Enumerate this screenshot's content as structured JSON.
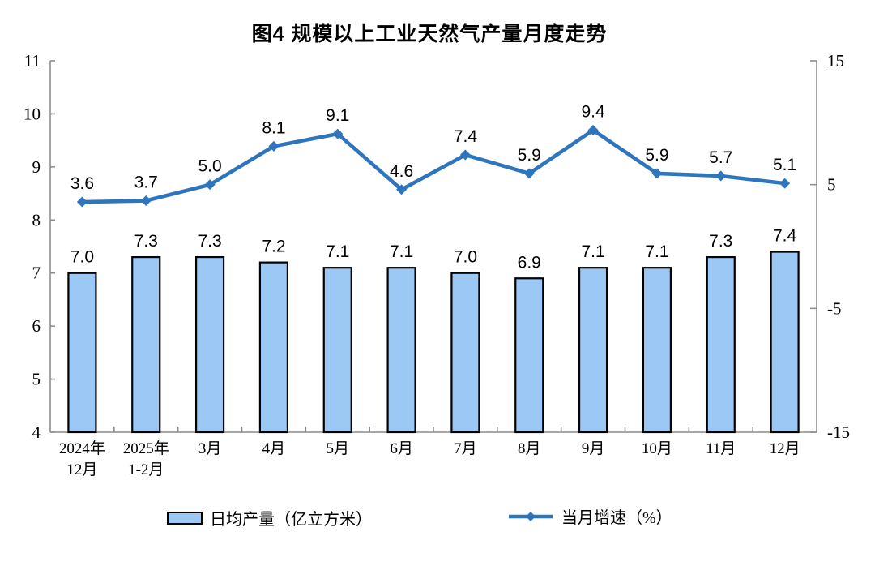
{
  "chart_data": {
    "type": "bar",
    "subtype": "bar+line combo, dual axis",
    "title": "图4 规模以上工业天然气产量月度走势",
    "categories": [
      "2024年12月",
      "2025年1-2月",
      "3月",
      "4月",
      "5月",
      "6月",
      "7月",
      "8月",
      "9月",
      "10月",
      "11月",
      "12月"
    ],
    "category_lines": [
      [
        "2024年",
        "12月"
      ],
      [
        "2025年",
        "1-2月"
      ],
      [
        "3月"
      ],
      [
        "4月"
      ],
      [
        "5月"
      ],
      [
        "6月"
      ],
      [
        "7月"
      ],
      [
        "8月"
      ],
      [
        "9月"
      ],
      [
        "10月"
      ],
      [
        "11月"
      ],
      [
        "12月"
      ]
    ],
    "series": [
      {
        "name": "日均产量（亿立方米）",
        "type": "bar",
        "axis": "left",
        "values": [
          7.0,
          7.3,
          7.3,
          7.2,
          7.1,
          7.1,
          7.0,
          6.9,
          7.1,
          7.1,
          7.3,
          7.4
        ]
      },
      {
        "name": "当月增速（%）",
        "type": "line",
        "axis": "right",
        "values": [
          3.6,
          3.7,
          5.0,
          8.1,
          9.1,
          4.6,
          7.4,
          5.9,
          9.4,
          5.9,
          5.7,
          5.1
        ]
      }
    ],
    "left_axis": {
      "min": 4,
      "max": 11,
      "tick_values": [
        4,
        5,
        6,
        7,
        8,
        9,
        10,
        11
      ]
    },
    "right_axis": {
      "min": -15,
      "max": 15,
      "tick_values": [
        -15,
        -5,
        5,
        15
      ]
    },
    "grid": false,
    "legend_position": "bottom",
    "data_labels": true,
    "colors": {
      "bar_fill": "#9BC8F5",
      "bar_border": "#000000",
      "line": "#2E75BE",
      "axis": "#8C8C8C",
      "text": "#000000",
      "background": "#FFFFFF"
    }
  }
}
